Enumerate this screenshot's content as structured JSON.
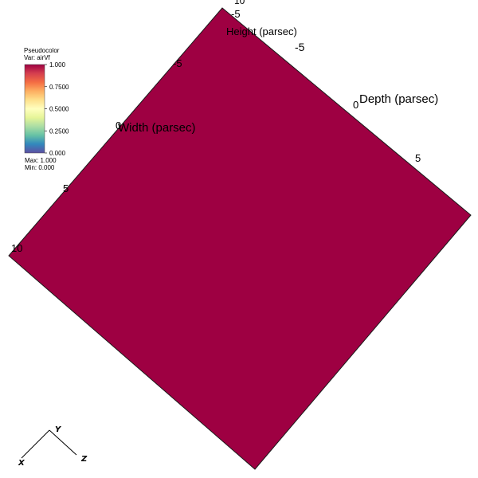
{
  "legend": {
    "title": "Pseudocolor",
    "var_label": "Var: airVf",
    "ticks": [
      "1.000",
      "0.7500",
      "0.5000",
      "0.2500",
      "0.000"
    ],
    "max_label": "Max:  1.000",
    "min_label": "Min:  0.000",
    "colormap": [
      "#9e0142",
      "#d53e4f",
      "#f46d43",
      "#fdae61",
      "#fee08b",
      "#ffffbf",
      "#e6f598",
      "#abdda4",
      "#66c2a5",
      "#3288bd",
      "#5e4fa2"
    ]
  },
  "plot": {
    "surface_color": "#9e0042",
    "surface_value": 1.0
  },
  "axes": {
    "height": {
      "label": "Height (parsec)",
      "ticks": [
        "10",
        "-5"
      ]
    },
    "depth": {
      "label": "Depth (parsec)",
      "ticks": [
        "-5",
        "0",
        "5"
      ]
    },
    "width": {
      "label": "Width (parsec)",
      "ticks": [
        "-5",
        "0",
        "5",
        "10"
      ]
    }
  },
  "triad": {
    "x": "X",
    "y": "Y",
    "z": "Z"
  }
}
